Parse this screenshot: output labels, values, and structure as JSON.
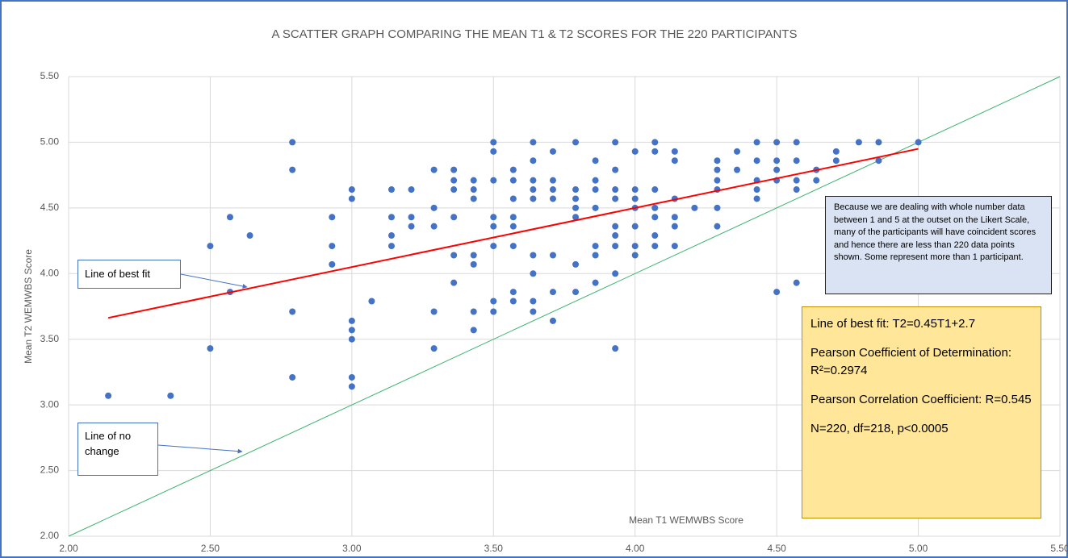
{
  "chart_data": {
    "type": "scatter",
    "title": "A SCATTER GRAPH COMPARING THE MEAN T1 & T2 SCORES FOR THE 220 PARTICIPANTS",
    "xlabel": "Mean T1 WEMWBS Score",
    "ylabel": "Mean T2 WEMWBS Score",
    "xlim": [
      2,
      5.5
    ],
    "ylim": [
      2,
      5.5
    ],
    "xticks": [
      {
        "value": 2,
        "label": "2.00"
      },
      {
        "value": 2.5,
        "label": "2.50"
      },
      {
        "value": 3,
        "label": "3.00"
      },
      {
        "value": 3.5,
        "label": "3.50"
      },
      {
        "value": 4,
        "label": "4.00"
      },
      {
        "value": 4.5,
        "label": "4.50"
      },
      {
        "value": 5,
        "label": "5.00"
      },
      {
        "value": 5.5,
        "label": "5.50"
      }
    ],
    "yticks": [
      {
        "value": 2,
        "label": "2.00"
      },
      {
        "value": 2.5,
        "label": "2.50"
      },
      {
        "value": 3,
        "label": "3.00"
      },
      {
        "value": 3.5,
        "label": "3.50"
      },
      {
        "value": 4,
        "label": "4.00"
      },
      {
        "value": 4.5,
        "label": "4.50"
      },
      {
        "value": 5,
        "label": "5.00"
      },
      {
        "value": 5.5,
        "label": "5.50"
      }
    ],
    "grid": true,
    "color": "#4472c4",
    "x": [
      2.14,
      2.36,
      2.5,
      2.5,
      2.57,
      2.57,
      2.64,
      2.79,
      2.79,
      2.79,
      2.79,
      2.93,
      2.93,
      2.93,
      3.0,
      3.0,
      3.0,
      3.0,
      3.0,
      3.0,
      3.0,
      3.07,
      3.14,
      3.14,
      3.14,
      3.14,
      3.21,
      3.21,
      3.21,
      3.29,
      3.29,
      3.29,
      3.29,
      3.29,
      3.36,
      3.36,
      3.36,
      3.36,
      3.36,
      3.36,
      3.43,
      3.43,
      3.43,
      3.43,
      3.43,
      3.43,
      3.43,
      3.5,
      3.5,
      3.5,
      3.5,
      3.5,
      3.5,
      3.5,
      3.5,
      3.57,
      3.57,
      3.57,
      3.57,
      3.57,
      3.57,
      3.57,
      3.57,
      3.64,
      3.64,
      3.64,
      3.64,
      3.64,
      3.64,
      3.64,
      3.64,
      3.64,
      3.71,
      3.71,
      3.71,
      3.71,
      3.71,
      3.71,
      3.71,
      3.79,
      3.79,
      3.79,
      3.79,
      3.79,
      3.79,
      3.79,
      3.86,
      3.86,
      3.86,
      3.86,
      3.86,
      3.86,
      3.86,
      3.93,
      3.93,
      3.93,
      3.93,
      3.93,
      3.93,
      3.93,
      3.93,
      3.93,
      4.0,
      4.0,
      4.0,
      4.0,
      4.0,
      4.0,
      4.0,
      4.07,
      4.07,
      4.07,
      4.07,
      4.07,
      4.07,
      4.07,
      4.14,
      4.14,
      4.14,
      4.14,
      4.14,
      4.14,
      4.21,
      4.29,
      4.29,
      4.29,
      4.29,
      4.29,
      4.29,
      4.36,
      4.36,
      4.43,
      4.43,
      4.43,
      4.43,
      4.43,
      4.5,
      4.5,
      4.5,
      4.5,
      4.5,
      4.57,
      4.57,
      4.57,
      4.57,
      4.57,
      4.64,
      4.64,
      4.71,
      4.71,
      4.79,
      4.86,
      4.86,
      5.0
    ],
    "y": [
      3.07,
      3.07,
      4.21,
      3.43,
      4.43,
      3.86,
      4.29,
      5.0,
      4.79,
      3.71,
      3.21,
      4.43,
      4.21,
      4.07,
      4.64,
      4.57,
      3.64,
      3.57,
      3.5,
      3.21,
      3.14,
      3.79,
      4.64,
      4.43,
      4.29,
      4.21,
      4.64,
      4.43,
      4.36,
      4.79,
      4.5,
      4.36,
      3.71,
      3.43,
      4.79,
      4.71,
      4.64,
      4.43,
      4.14,
      3.93,
      4.71,
      4.64,
      4.57,
      4.14,
      4.07,
      3.71,
      3.57,
      5.0,
      4.93,
      4.71,
      4.43,
      4.36,
      4.21,
      3.79,
      3.71,
      4.79,
      4.71,
      4.57,
      4.43,
      4.36,
      4.21,
      3.86,
      3.79,
      5.0,
      4.86,
      4.71,
      4.64,
      4.57,
      4.14,
      4.0,
      3.79,
      3.71,
      4.93,
      4.71,
      4.64,
      4.57,
      4.14,
      3.86,
      3.64,
      5.0,
      4.64,
      4.57,
      4.5,
      4.43,
      4.07,
      3.86,
      4.86,
      4.71,
      4.64,
      4.5,
      4.21,
      4.14,
      3.93,
      5.0,
      4.79,
      4.64,
      4.57,
      4.36,
      4.29,
      4.21,
      4.0,
      3.43,
      4.93,
      4.64,
      4.57,
      4.5,
      4.36,
      4.21,
      4.14,
      5.0,
      4.93,
      4.64,
      4.5,
      4.43,
      4.29,
      4.21,
      4.93,
      4.86,
      4.57,
      4.43,
      4.36,
      4.21,
      4.5,
      4.86,
      4.79,
      4.71,
      4.64,
      4.5,
      4.36,
      4.93,
      4.79,
      5.0,
      4.86,
      4.71,
      4.64,
      4.57,
      5.0,
      4.86,
      4.79,
      4.71,
      3.86,
      5.0,
      4.86,
      4.71,
      4.64,
      3.93,
      4.79,
      4.71,
      4.93,
      4.86,
      5.0,
      5.0,
      4.86,
      5.0
    ],
    "fit_line": {
      "x": [
        2.14,
        5.0
      ],
      "y": [
        3.663,
        4.95
      ],
      "color": "#ff0000"
    },
    "no_change_line": {
      "x": [
        2,
        5.5
      ],
      "y": [
        2,
        5.5
      ],
      "color": "#3cb371"
    },
    "annotations": {
      "best_fit": "Line of best fit",
      "no_change": "Line of no change",
      "note": "Because we are dealing with whole number data between 1 and 5 at the outset on the Likert Scale, many of the participants will have coincident scores and hence there are less than 220 data points shown. Some represent more than 1 participant.",
      "stats": [
        "Line of best fit: T2=0.45T1+2.7",
        "Pearson Coefficient of Determination: R²=0.2974",
        "Pearson Correlation Coefficient: R=0.545",
        "N=220, df=218, p<0.0005"
      ]
    }
  }
}
